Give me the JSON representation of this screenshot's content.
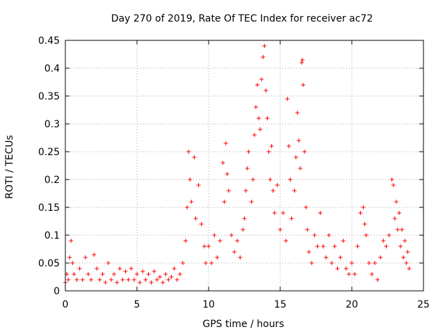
{
  "chart_data": {
    "type": "scatter",
    "title": "Day 270 of 2019, Rate Of TEC Index for receiver ac72",
    "xlabel": "GPS time / hours",
    "ylabel": "ROTI / TECUs",
    "xlim": [
      0,
      25
    ],
    "ylim": [
      0,
      0.45
    ],
    "grid": true,
    "marker": "+",
    "colors": {
      "series": "#ff0000",
      "grid": "#a0a0a0",
      "axes": "#000000"
    },
    "x_ticks": [
      {
        "value": 0,
        "label": "0"
      },
      {
        "value": 5,
        "label": "5"
      },
      {
        "value": 10,
        "label": "10"
      },
      {
        "value": 15,
        "label": "15"
      },
      {
        "value": 20,
        "label": "20"
      },
      {
        "value": 25,
        "label": "25"
      }
    ],
    "y_ticks": [
      {
        "value": 0,
        "label": "0"
      },
      {
        "value": 0.05,
        "label": "0.05"
      },
      {
        "value": 0.1,
        "label": "0.1"
      },
      {
        "value": 0.15,
        "label": "0.15"
      },
      {
        "value": 0.2,
        "label": "0.2"
      },
      {
        "value": 0.25,
        "label": "0.25"
      },
      {
        "value": 0.3,
        "label": "0.3"
      },
      {
        "value": 0.35,
        "label": "0.35"
      },
      {
        "value": 0.4,
        "label": "0.4"
      },
      {
        "value": 0.45,
        "label": "0.45"
      }
    ],
    "series": [
      {
        "points": [
          [
            0.0,
            0.015
          ],
          [
            0.1,
            0.03
          ],
          [
            0.2,
            0.02
          ],
          [
            0.3,
            0.06
          ],
          [
            0.4,
            0.09
          ],
          [
            0.5,
            0.05
          ],
          [
            0.6,
            0.03
          ],
          [
            0.8,
            0.02
          ],
          [
            1.0,
            0.04
          ],
          [
            1.2,
            0.02
          ],
          [
            1.4,
            0.06
          ],
          [
            1.6,
            0.03
          ],
          [
            1.8,
            0.02
          ],
          [
            2.0,
            0.065
          ],
          [
            2.2,
            0.04
          ],
          [
            2.4,
            0.02
          ],
          [
            2.6,
            0.03
          ],
          [
            2.8,
            0.015
          ],
          [
            3.0,
            0.05
          ],
          [
            3.2,
            0.02
          ],
          [
            3.4,
            0.03
          ],
          [
            3.6,
            0.015
          ],
          [
            3.8,
            0.04
          ],
          [
            4.0,
            0.02
          ],
          [
            4.2,
            0.035
          ],
          [
            4.4,
            0.02
          ],
          [
            4.6,
            0.04
          ],
          [
            4.8,
            0.02
          ],
          [
            5.0,
            0.03
          ],
          [
            5.2,
            0.015
          ],
          [
            5.4,
            0.035
          ],
          [
            5.6,
            0.02
          ],
          [
            5.8,
            0.03
          ],
          [
            6.0,
            0.015
          ],
          [
            6.2,
            0.035
          ],
          [
            6.4,
            0.02
          ],
          [
            6.6,
            0.025
          ],
          [
            6.8,
            0.015
          ],
          [
            7.0,
            0.03
          ],
          [
            7.2,
            0.02
          ],
          [
            7.4,
            0.025
          ],
          [
            7.6,
            0.04
          ],
          [
            7.8,
            0.02
          ],
          [
            8.0,
            0.03
          ],
          [
            8.2,
            0.05
          ],
          [
            8.4,
            0.09
          ],
          [
            8.5,
            0.15
          ],
          [
            8.6,
            0.25
          ],
          [
            8.7,
            0.2
          ],
          [
            8.8,
            0.16
          ],
          [
            9.0,
            0.24
          ],
          [
            9.1,
            0.13
          ],
          [
            9.3,
            0.19
          ],
          [
            9.5,
            0.12
          ],
          [
            9.7,
            0.08
          ],
          [
            9.8,
            0.05
          ],
          [
            10.0,
            0.08
          ],
          [
            10.2,
            0.05
          ],
          [
            10.4,
            0.1
          ],
          [
            10.6,
            0.06
          ],
          [
            10.8,
            0.09
          ],
          [
            11.0,
            0.23
          ],
          [
            11.1,
            0.16
          ],
          [
            11.2,
            0.265
          ],
          [
            11.3,
            0.21
          ],
          [
            11.4,
            0.18
          ],
          [
            11.6,
            0.1
          ],
          [
            11.8,
            0.07
          ],
          [
            12.0,
            0.09
          ],
          [
            12.2,
            0.06
          ],
          [
            12.4,
            0.11
          ],
          [
            12.5,
            0.13
          ],
          [
            12.6,
            0.18
          ],
          [
            12.7,
            0.22
          ],
          [
            12.8,
            0.25
          ],
          [
            13.0,
            0.16
          ],
          [
            13.1,
            0.2
          ],
          [
            13.2,
            0.28
          ],
          [
            13.3,
            0.33
          ],
          [
            13.4,
            0.37
          ],
          [
            13.5,
            0.31
          ],
          [
            13.6,
            0.29
          ],
          [
            13.7,
            0.38
          ],
          [
            13.8,
            0.42
          ],
          [
            13.9,
            0.44
          ],
          [
            14.0,
            0.36
          ],
          [
            14.1,
            0.31
          ],
          [
            14.2,
            0.25
          ],
          [
            14.3,
            0.2
          ],
          [
            14.4,
            0.26
          ],
          [
            14.5,
            0.18
          ],
          [
            14.6,
            0.14
          ],
          [
            14.8,
            0.19
          ],
          [
            15.0,
            0.11
          ],
          [
            15.2,
            0.14
          ],
          [
            15.4,
            0.09
          ],
          [
            15.5,
            0.345
          ],
          [
            15.6,
            0.26
          ],
          [
            15.7,
            0.2
          ],
          [
            15.8,
            0.13
          ],
          [
            16.0,
            0.18
          ],
          [
            16.1,
            0.24
          ],
          [
            16.2,
            0.32
          ],
          [
            16.3,
            0.27
          ],
          [
            16.4,
            0.22
          ],
          [
            16.5,
            0.41
          ],
          [
            16.55,
            0.415
          ],
          [
            16.6,
            0.37
          ],
          [
            16.7,
            0.25
          ],
          [
            16.8,
            0.15
          ],
          [
            16.9,
            0.11
          ],
          [
            17.0,
            0.07
          ],
          [
            17.2,
            0.05
          ],
          [
            17.4,
            0.1
          ],
          [
            17.6,
            0.08
          ],
          [
            17.8,
            0.14
          ],
          [
            18.0,
            0.08
          ],
          [
            18.2,
            0.06
          ],
          [
            18.4,
            0.1
          ],
          [
            18.6,
            0.05
          ],
          [
            18.8,
            0.08
          ],
          [
            19.0,
            0.04
          ],
          [
            19.2,
            0.06
          ],
          [
            19.4,
            0.09
          ],
          [
            19.6,
            0.04
          ],
          [
            19.8,
            0.03
          ],
          [
            20.0,
            0.05
          ],
          [
            20.2,
            0.03
          ],
          [
            20.4,
            0.08
          ],
          [
            20.6,
            0.14
          ],
          [
            20.8,
            0.15
          ],
          [
            20.9,
            0.12
          ],
          [
            21.0,
            0.1
          ],
          [
            21.2,
            0.05
          ],
          [
            21.4,
            0.03
          ],
          [
            21.6,
            0.05
          ],
          [
            21.8,
            0.02
          ],
          [
            22.0,
            0.06
          ],
          [
            22.2,
            0.09
          ],
          [
            22.4,
            0.08
          ],
          [
            22.6,
            0.1
          ],
          [
            22.8,
            0.2
          ],
          [
            22.9,
            0.19
          ],
          [
            23.0,
            0.13
          ],
          [
            23.1,
            0.16
          ],
          [
            23.2,
            0.11
          ],
          [
            23.3,
            0.14
          ],
          [
            23.4,
            0.08
          ],
          [
            23.5,
            0.11
          ],
          [
            23.6,
            0.06
          ],
          [
            23.7,
            0.09
          ],
          [
            23.8,
            0.05
          ],
          [
            23.9,
            0.07
          ],
          [
            24.0,
            0.04
          ]
        ]
      }
    ]
  }
}
